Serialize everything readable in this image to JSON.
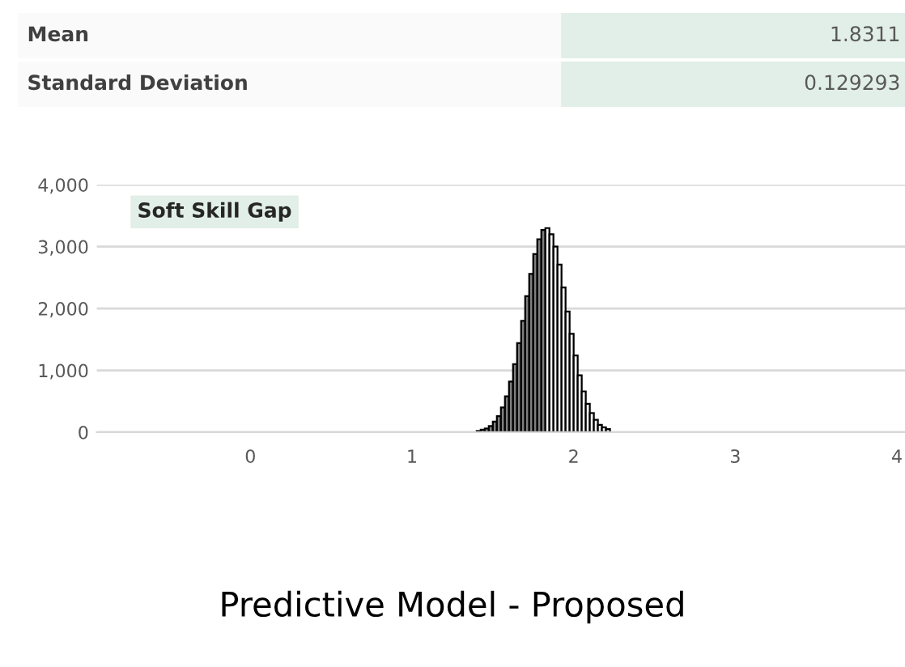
{
  "chart_data": {
    "type": "histogram",
    "title": "Soft Skill Gap",
    "bins": [
      1.4,
      1.425,
      1.45,
      1.475,
      1.5,
      1.525,
      1.55,
      1.575,
      1.6,
      1.625,
      1.65,
      1.675,
      1.7,
      1.725,
      1.75,
      1.775,
      1.8,
      1.825,
      1.85,
      1.875,
      1.9,
      1.925,
      1.95,
      1.975,
      2.0,
      2.025,
      2.05,
      2.075,
      2.1,
      2.125,
      2.15,
      2.175,
      2.2,
      2.225,
      2.25,
      2.275,
      2.3
    ],
    "values": [
      20,
      40,
      60,
      100,
      170,
      260,
      400,
      580,
      820,
      1100,
      1440,
      1800,
      2200,
      2560,
      2880,
      3120,
      3270,
      3300,
      3200,
      3000,
      2710,
      2340,
      1950,
      1590,
      1240,
      920,
      660,
      460,
      310,
      200,
      120,
      80,
      50,
      null,
      null,
      null
    ],
    "colors": [
      "#7f7f7f",
      "#7f7f7f",
      "#7f7f7f",
      "#7f7f7f",
      "#7f7f7f",
      "#7f7f7f",
      "#7f7f7f",
      "#7f7f7f",
      "#7f7f7f",
      "#7f7f7f",
      "#7f7f7f",
      "#7f7f7f",
      "#7f7f7f",
      "#7f7f7f",
      "#7f7f7f",
      "#7f7f7f",
      "#7f7f7f",
      "#f2f2f2",
      "#f2f2f2",
      "#f2f2f2",
      "#f2f2f2",
      "#f2f2f2",
      "#f2f2f2",
      "#f2f2f2",
      "#f2f2f2",
      "#f2f2f2",
      "#f2f2f2",
      "#f2f2f2",
      "#f2f2f2",
      "#f2f2f2",
      "#f2f2f2",
      "#f2f2f2",
      "#f2f2f2",
      "#f2f2f2",
      "#f2f2f2",
      "#f2f2f2"
    ],
    "xlim": [
      -0.95,
      4.05
    ],
    "xticks": [
      0,
      1,
      2,
      3,
      4
    ],
    "ylim": [
      0,
      4000
    ],
    "yticks": [
      {
        "value": 0,
        "label": "0"
      },
      {
        "value": 1000,
        "label": "1,000"
      },
      {
        "value": 2000,
        "label": "2,000"
      },
      {
        "value": 3000,
        "label": "3,000"
      },
      {
        "value": 4000,
        "label": "4,000"
      }
    ],
    "grid": "y",
    "annotations": [
      "Mean",
      "1.8311",
      "Standard Deviation",
      "0.129293",
      "Predictive Model - Proposed"
    ]
  }
}
